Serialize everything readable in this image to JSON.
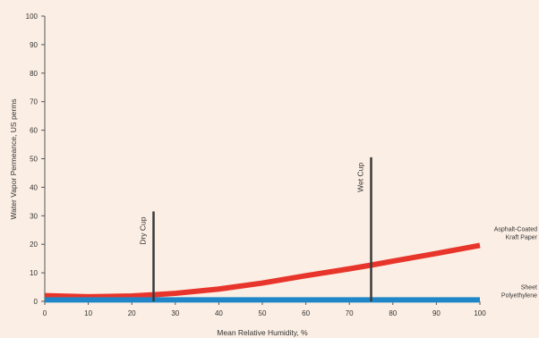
{
  "chart_data": {
    "type": "line",
    "title": "",
    "xlabel": "Mean Relative Humidity, %",
    "ylabel": "Water Vapor Permeance, US perms",
    "xlim": [
      0,
      100
    ],
    "ylim": [
      0,
      100
    ],
    "xticks": [
      0,
      10,
      20,
      30,
      40,
      50,
      60,
      70,
      80,
      90,
      100
    ],
    "yticks": [
      0,
      10,
      20,
      30,
      40,
      50,
      60,
      70,
      80,
      90,
      100
    ],
    "grid": false,
    "series": [
      {
        "name": "Asphalt-Coated Kraft Paper",
        "label_lines": [
          "Asphalt-Coated",
          "Kraft Paper"
        ],
        "color": "#e8352b",
        "x": [
          0,
          10,
          20,
          25,
          30,
          40,
          50,
          60,
          70,
          75,
          80,
          90,
          100
        ],
        "y": [
          2,
          1.6,
          1.9,
          2.3,
          2.8,
          4.3,
          6.4,
          9.0,
          11.4,
          12.7,
          14.1,
          16.8,
          19.6
        ]
      },
      {
        "name": "Sheet Polyethylene",
        "label_lines": [
          "Sheet",
          "Polyethylene"
        ],
        "color": "#1f86c8",
        "x": [
          0,
          100
        ],
        "y": [
          0.5,
          0.5
        ]
      }
    ],
    "annotations": [
      {
        "label": "Dry Cup",
        "x": 25,
        "y_top": 31.5
      },
      {
        "label": "Wet Cup",
        "x": 75,
        "y_top": 50.5
      }
    ]
  }
}
